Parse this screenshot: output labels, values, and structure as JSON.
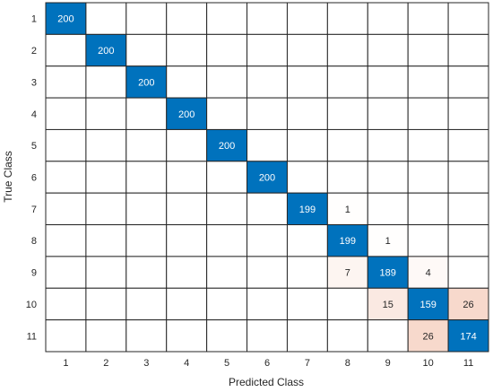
{
  "chart_data": {
    "type": "heatmap",
    "xlabel": "Predicted Class",
    "ylabel": "True Class",
    "classes": [
      "1",
      "2",
      "3",
      "4",
      "5",
      "6",
      "7",
      "8",
      "9",
      "10",
      "11"
    ],
    "matrix": [
      [
        200,
        0,
        0,
        0,
        0,
        0,
        0,
        0,
        0,
        0,
        0
      ],
      [
        0,
        200,
        0,
        0,
        0,
        0,
        0,
        0,
        0,
        0,
        0
      ],
      [
        0,
        0,
        200,
        0,
        0,
        0,
        0,
        0,
        0,
        0,
        0
      ],
      [
        0,
        0,
        0,
        200,
        0,
        0,
        0,
        0,
        0,
        0,
        0
      ],
      [
        0,
        0,
        0,
        0,
        200,
        0,
        0,
        0,
        0,
        0,
        0
      ],
      [
        0,
        0,
        0,
        0,
        0,
        200,
        0,
        0,
        0,
        0,
        0
      ],
      [
        0,
        0,
        0,
        0,
        0,
        0,
        199,
        1,
        0,
        0,
        0
      ],
      [
        0,
        0,
        0,
        0,
        0,
        0,
        0,
        199,
        1,
        0,
        0
      ],
      [
        0,
        0,
        0,
        0,
        0,
        0,
        0,
        7,
        189,
        4,
        0
      ],
      [
        0,
        0,
        0,
        0,
        0,
        0,
        0,
        0,
        15,
        159,
        26
      ],
      [
        0,
        0,
        0,
        0,
        0,
        0,
        0,
        0,
        0,
        26,
        174
      ]
    ],
    "colors": {
      "diagonal": "#0072bd",
      "off_diagonal_max": "#d95319",
      "empty": "#ffffff",
      "grid": "#262626"
    }
  }
}
